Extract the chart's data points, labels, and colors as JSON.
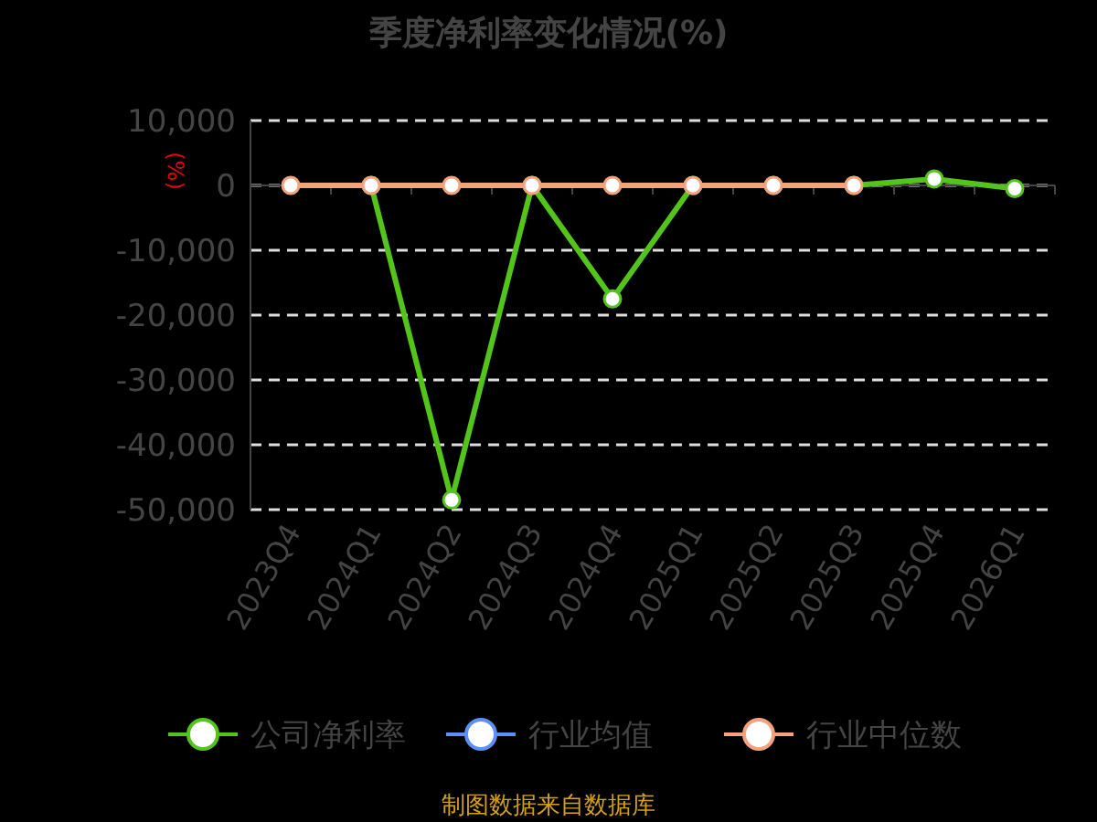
{
  "chart_data": {
    "type": "line",
    "title": "季度净利率变化情况(%)",
    "ylabel": "(%)",
    "categories": [
      "2023Q4",
      "2024Q1",
      "2024Q2",
      "2024Q3",
      "2024Q4",
      "2025Q1",
      "2025Q2",
      "2025Q3",
      "2025Q4",
      "2026Q1"
    ],
    "series": [
      {
        "name": "公司净利率",
        "color": "#52c41a",
        "values": [
          null,
          0,
          -48500,
          0,
          -17500,
          0,
          0,
          0,
          1000,
          -500
        ]
      },
      {
        "name": "行业均值",
        "color": "#5b8ff9",
        "values": [
          null,
          null,
          null,
          null,
          null,
          null,
          null,
          null,
          null,
          null
        ]
      },
      {
        "name": "行业中位数",
        "color": "#f4a27c",
        "values": [
          0,
          0,
          0,
          0,
          0,
          0,
          0,
          0,
          null,
          null
        ]
      }
    ],
    "ylim": [
      -50000,
      10000
    ],
    "yticks": [
      {
        "value": 10000,
        "label": "10,000"
      },
      {
        "value": 0,
        "label": "0"
      },
      {
        "value": -10000,
        "label": "-10,000"
      },
      {
        "value": -20000,
        "label": "-20,000"
      },
      {
        "value": -30000,
        "label": "-30,000"
      },
      {
        "value": -40000,
        "label": "-40,000"
      },
      {
        "value": -50000,
        "label": "-50,000"
      }
    ],
    "grid": "y",
    "legend": "bottom",
    "marker": "circle",
    "line_style": "solid",
    "annotations": [
      "制图数据来自数据库"
    ]
  }
}
